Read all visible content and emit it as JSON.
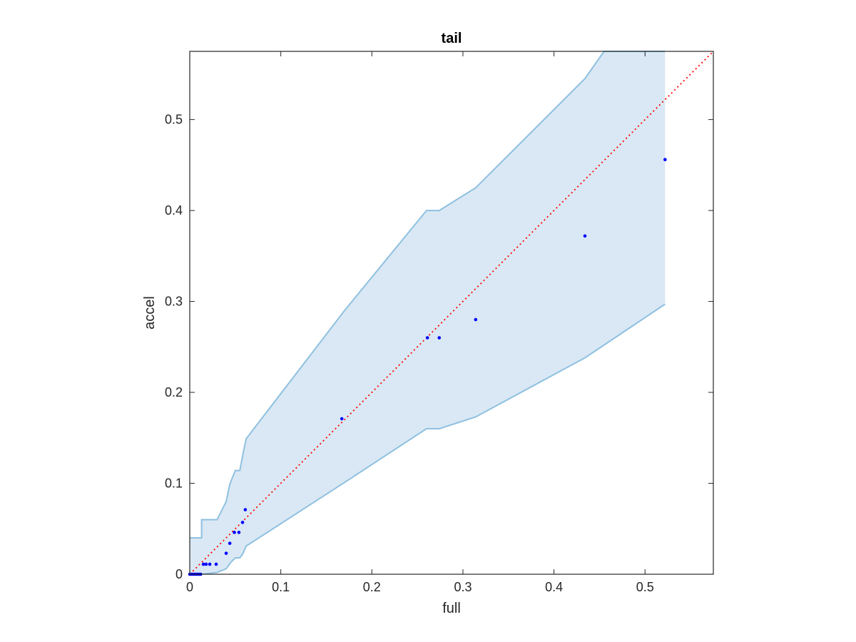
{
  "chart_data": {
    "type": "scatter",
    "title": "tail",
    "xlabel": "full",
    "ylabel": "accel",
    "xlim": [
      0,
      0.575
    ],
    "ylim": [
      0,
      0.575
    ],
    "xticks": [
      0,
      0.1,
      0.2,
      0.3,
      0.4,
      0.5
    ],
    "xtick_labels": [
      "0",
      "0.1",
      "0.2",
      "0.3",
      "0.4",
      "0.5"
    ],
    "yticks": [
      0,
      0.1,
      0.2,
      0.3,
      0.4,
      0.5
    ],
    "ytick_labels": [
      "0",
      "0.1",
      "0.2",
      "0.3",
      "0.4",
      "0.5"
    ],
    "grid": false,
    "legend": "none",
    "colors": {
      "points": "#0000ff",
      "band_fill": "#d9e8f4",
      "band_edge": "#8fc0e0",
      "reference_line": "#ff0000",
      "axes": "#262626"
    },
    "points": {
      "x": [
        0,
        0.002,
        0.004,
        0.006,
        0.008,
        0.01,
        0.012,
        0.015,
        0.018,
        0.022,
        0.029,
        0.04,
        0.044,
        0.049,
        0.054,
        0.058,
        0.061,
        0.167,
        0.261,
        0.274,
        0.314,
        0.434,
        0.522
      ],
      "y": [
        0,
        0,
        0,
        0,
        0,
        0,
        0,
        0.011,
        0.011,
        0.011,
        0.011,
        0.023,
        0.034,
        0.046,
        0.046,
        0.057,
        0.071,
        0.171,
        0.26,
        0.26,
        0.28,
        0.372,
        0.456
      ]
    },
    "band": {
      "upper": {
        "x": [
          0,
          0.013,
          0.013,
          0.03,
          0.04,
          0.044,
          0.05,
          0.055,
          0.058,
          0.06,
          0.062,
          0.17,
          0.26,
          0.274,
          0.314,
          0.434,
          0.455,
          0.522
        ],
        "y": [
          0.04,
          0.04,
          0.06,
          0.06,
          0.08,
          0.099,
          0.114,
          0.114,
          0.13,
          0.14,
          0.149,
          0.29,
          0.4,
          0.4,
          0.425,
          0.545,
          0.575,
          0.575
        ]
      },
      "lower": {
        "x": [
          0,
          0.013,
          0.03,
          0.04,
          0.045,
          0.05,
          0.055,
          0.058,
          0.062,
          0.167,
          0.26,
          0.274,
          0.314,
          0.434,
          0.522
        ],
        "y": [
          0,
          0,
          0.002,
          0.006,
          0.013,
          0.018,
          0.018,
          0.022,
          0.031,
          0.099,
          0.16,
          0.16,
          0.173,
          0.238,
          0.297
        ]
      }
    },
    "reference_line": {
      "x": [
        0,
        0.575
      ],
      "y": [
        0,
        0.575
      ]
    }
  }
}
